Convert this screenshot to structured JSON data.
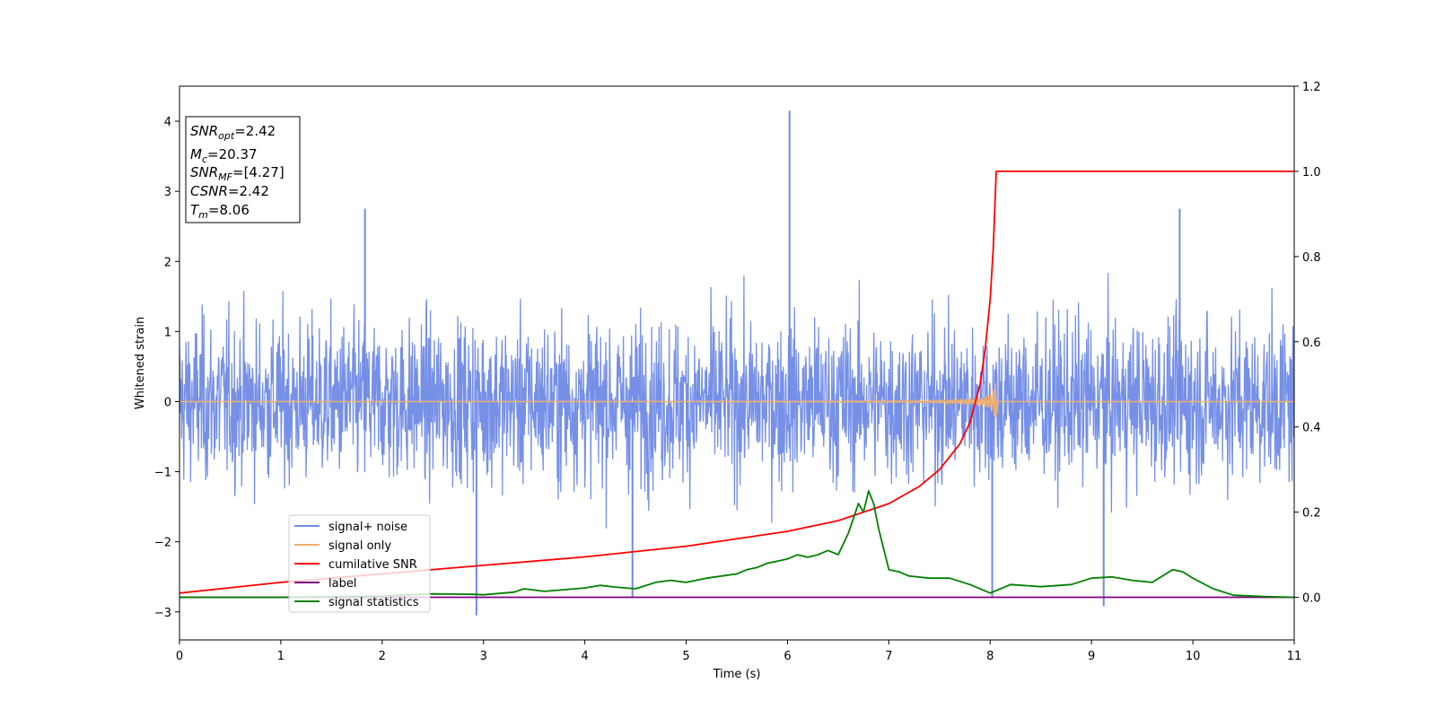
{
  "chart_data": {
    "type": "line",
    "xlabel": "Time (s)",
    "ylabel": "Whitened strain",
    "xlim": [
      0,
      11
    ],
    "ylim": [
      -3.4,
      4.5
    ],
    "y2lim": [
      -0.1,
      1.2
    ],
    "xticks": [
      "0",
      "1",
      "2",
      "3",
      "4",
      "5",
      "6",
      "7",
      "8",
      "9",
      "10",
      "11"
    ],
    "yticks": [
      "−3",
      "−2",
      "−1",
      "0",
      "1",
      "2",
      "3",
      "4"
    ],
    "y2ticks": [
      "0.0",
      "0.2",
      "0.4",
      "0.6",
      "0.8",
      "1.0",
      "1.2"
    ],
    "info_box": [
      {
        "base": "SNR",
        "sub": "opt",
        "value": "=2.42"
      },
      {
        "base": "M",
        "sub": "c",
        "value": "=20.37"
      },
      {
        "base": "SNR",
        "sub": "MF",
        "value": "=[4.27]"
      },
      {
        "base": "CSNR",
        "sub": "",
        "value": "=2.42"
      },
      {
        "base": "T",
        "sub": "m",
        "value": "=8.06"
      }
    ],
    "legend_position": "lower-left",
    "series": [
      {
        "name": "signal+ noise",
        "color": "#6f8ae6",
        "axis": "left",
        "description_kind": "noise band",
        "band": [
          -1.7,
          1.7
        ],
        "spikes": [
          [
            6.02,
            4.15
          ],
          [
            1.83,
            2.75
          ],
          [
            2.93,
            -3.05
          ],
          [
            9.12,
            -2.92
          ],
          [
            9.87,
            2.75
          ],
          [
            4.47,
            -2.8
          ],
          [
            8.02,
            -2.8
          ]
        ]
      },
      {
        "name": "signal only",
        "color": "#f0b070",
        "axis": "left",
        "chirp_end": 8.06,
        "chirp_peak_amplitude": 0.4
      },
      {
        "name": "cumilative SNR",
        "color": "#ff0000",
        "axis": "right",
        "x": [
          0,
          1,
          2,
          3,
          4,
          5,
          6,
          6.5,
          7,
          7.3,
          7.5,
          7.7,
          7.8,
          7.9,
          7.95,
          8.0,
          8.03,
          8.06,
          11
        ],
        "y": [
          0.01,
          0.035,
          0.055,
          0.075,
          0.095,
          0.12,
          0.155,
          0.18,
          0.22,
          0.26,
          0.3,
          0.36,
          0.41,
          0.5,
          0.58,
          0.7,
          0.82,
          1.0,
          1.0
        ]
      },
      {
        "name": "label",
        "color": "#800080",
        "axis": "right",
        "x": [
          0,
          11
        ],
        "y": [
          0.0,
          0.0
        ]
      },
      {
        "name": "signal statistics",
        "color": "#008000",
        "axis": "right",
        "x": [
          0,
          1,
          2,
          2.5,
          2.9,
          3.0,
          3.3,
          3.4,
          3.6,
          3.8,
          4.0,
          4.15,
          4.3,
          4.5,
          4.7,
          4.85,
          5.0,
          5.2,
          5.35,
          5.5,
          5.6,
          5.7,
          5.8,
          5.9,
          6.0,
          6.1,
          6.2,
          6.3,
          6.4,
          6.5,
          6.6,
          6.7,
          6.75,
          6.8,
          6.85,
          6.9,
          7.0,
          7.1,
          7.2,
          7.4,
          7.6,
          7.8,
          8.0,
          8.2,
          8.5,
          8.8,
          9.0,
          9.2,
          9.4,
          9.6,
          9.8,
          9.9,
          10.0,
          10.2,
          10.4,
          10.7,
          11
        ],
        "y": [
          0.0,
          0.0,
          0.003,
          0.008,
          0.007,
          0.006,
          0.012,
          0.02,
          0.014,
          0.018,
          0.022,
          0.028,
          0.024,
          0.02,
          0.035,
          0.04,
          0.035,
          0.045,
          0.05,
          0.055,
          0.065,
          0.07,
          0.08,
          0.085,
          0.09,
          0.1,
          0.094,
          0.1,
          0.11,
          0.1,
          0.15,
          0.22,
          0.2,
          0.25,
          0.22,
          0.16,
          0.065,
          0.06,
          0.05,
          0.045,
          0.045,
          0.03,
          0.01,
          0.03,
          0.025,
          0.03,
          0.045,
          0.048,
          0.04,
          0.035,
          0.065,
          0.06,
          0.045,
          0.02,
          0.005,
          0.002,
          0.0
        ]
      }
    ]
  }
}
